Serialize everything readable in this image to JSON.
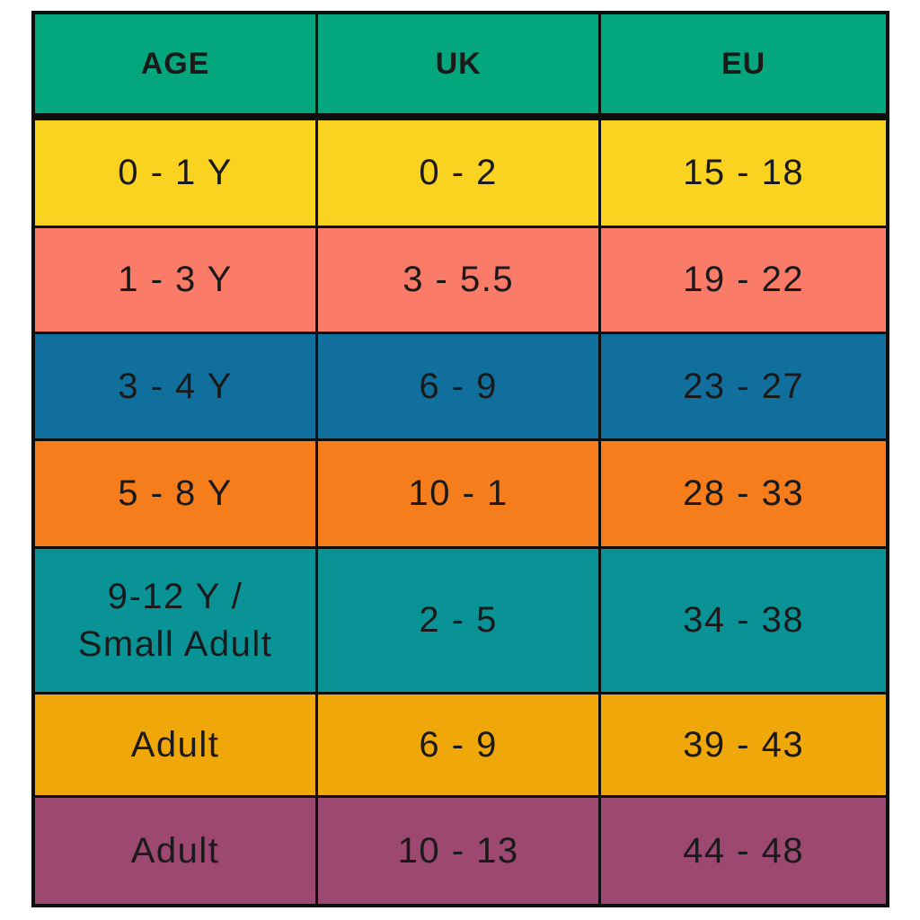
{
  "chart_data": {
    "type": "table",
    "columns": [
      "AGE",
      "UK",
      "EU"
    ],
    "header_color": "#04A77D",
    "border_color": "#0E0E0E",
    "text_color": "#1A1A1A",
    "rows": [
      {
        "age": "0 - 1 Y",
        "uk": "0 - 2",
        "eu": "15 - 18",
        "color": "#FAD220"
      },
      {
        "age": "1 - 3 Y",
        "uk": "3 - 5.5",
        "eu": "19 - 22",
        "color": "#F97B68"
      },
      {
        "age": "3 - 4 Y",
        "uk": "6 - 9",
        "eu": "23 - 27",
        "color": "#116F9D"
      },
      {
        "age": "5 - 8 Y",
        "uk": "10 - 1",
        "eu": "28 - 33",
        "color": "#F57D1C"
      },
      {
        "age": "9-12 Y /\nSmall Adult",
        "uk": "2 - 5",
        "eu": "34 - 38",
        "color": "#0A9396"
      },
      {
        "age": "Adult",
        "uk": "6 - 9",
        "eu": "39 - 43",
        "color": "#F0A70A"
      },
      {
        "age": "Adult",
        "uk": "10 - 13",
        "eu": "44 - 48",
        "color": "#9C4870"
      }
    ]
  }
}
